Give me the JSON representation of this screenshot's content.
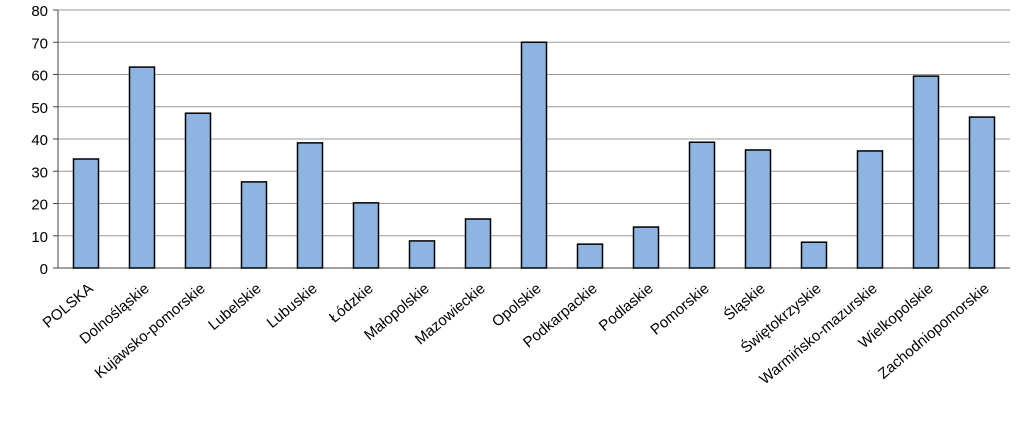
{
  "chart_data": {
    "type": "bar",
    "categories": [
      "POLSKA",
      "Dolnośląskie",
      "Kujawsko-pomorskie",
      "Lubelskie",
      "Lubuskie",
      "Łódzkie",
      "Małopolskie",
      "Mazowieckie",
      "Opolskie",
      "Podkarpackie",
      "Podlaskie",
      "Pomorskie",
      "Śląskie",
      "Świętokrzyskie",
      "Warmińsko-mazurskie",
      "Wielkopolskie",
      "Zachodniopomorskie"
    ],
    "values": [
      33.8,
      62.3,
      48,
      26.7,
      38.8,
      20.2,
      8.4,
      15.2,
      70,
      7.4,
      12.7,
      39,
      36.6,
      8,
      36.3,
      59.5,
      46.8
    ],
    "color": "#8db4e2",
    "ylim": [
      0,
      80
    ],
    "yticks": [
      0,
      10,
      20,
      30,
      40,
      50,
      60,
      70,
      80
    ],
    "grid": true
  }
}
